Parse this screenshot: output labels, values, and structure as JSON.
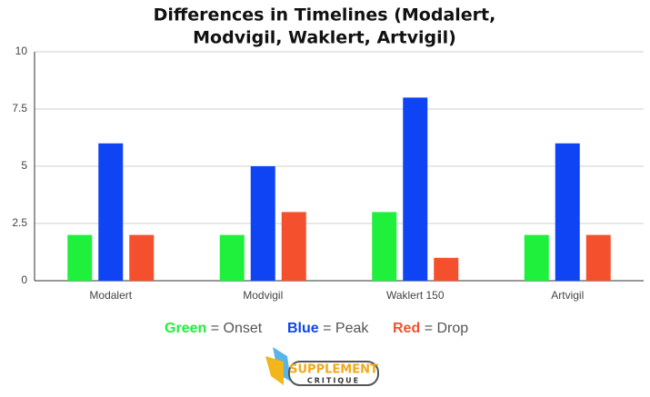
{
  "chart_data": {
    "type": "bar",
    "title": [
      "Differences in Timelines (Modalert,",
      "Modvigil, Waklert, Artvigil)"
    ],
    "categories": [
      "Modalert",
      "Modvigil",
      "Waklert 150",
      "Artvigil"
    ],
    "series": [
      {
        "name": "Onset",
        "color": "#1ef03c",
        "values": [
          2,
          2,
          3,
          2
        ]
      },
      {
        "name": "Peak",
        "color": "#0f44f5",
        "values": [
          6,
          5,
          8,
          6
        ]
      },
      {
        "name": "Drop",
        "color": "#f5502d",
        "values": [
          2,
          3,
          1,
          2
        ]
      }
    ],
    "legend_keys": [
      "Green",
      "Blue",
      "Red"
    ],
    "legend_separator": "=",
    "ylim": [
      0,
      10
    ],
    "yticks": [
      0,
      2.5,
      5,
      7.5,
      10
    ],
    "grid": true
  },
  "logo": {
    "line1": "SUPPLEMENT",
    "line2": "CRITIQUE"
  }
}
